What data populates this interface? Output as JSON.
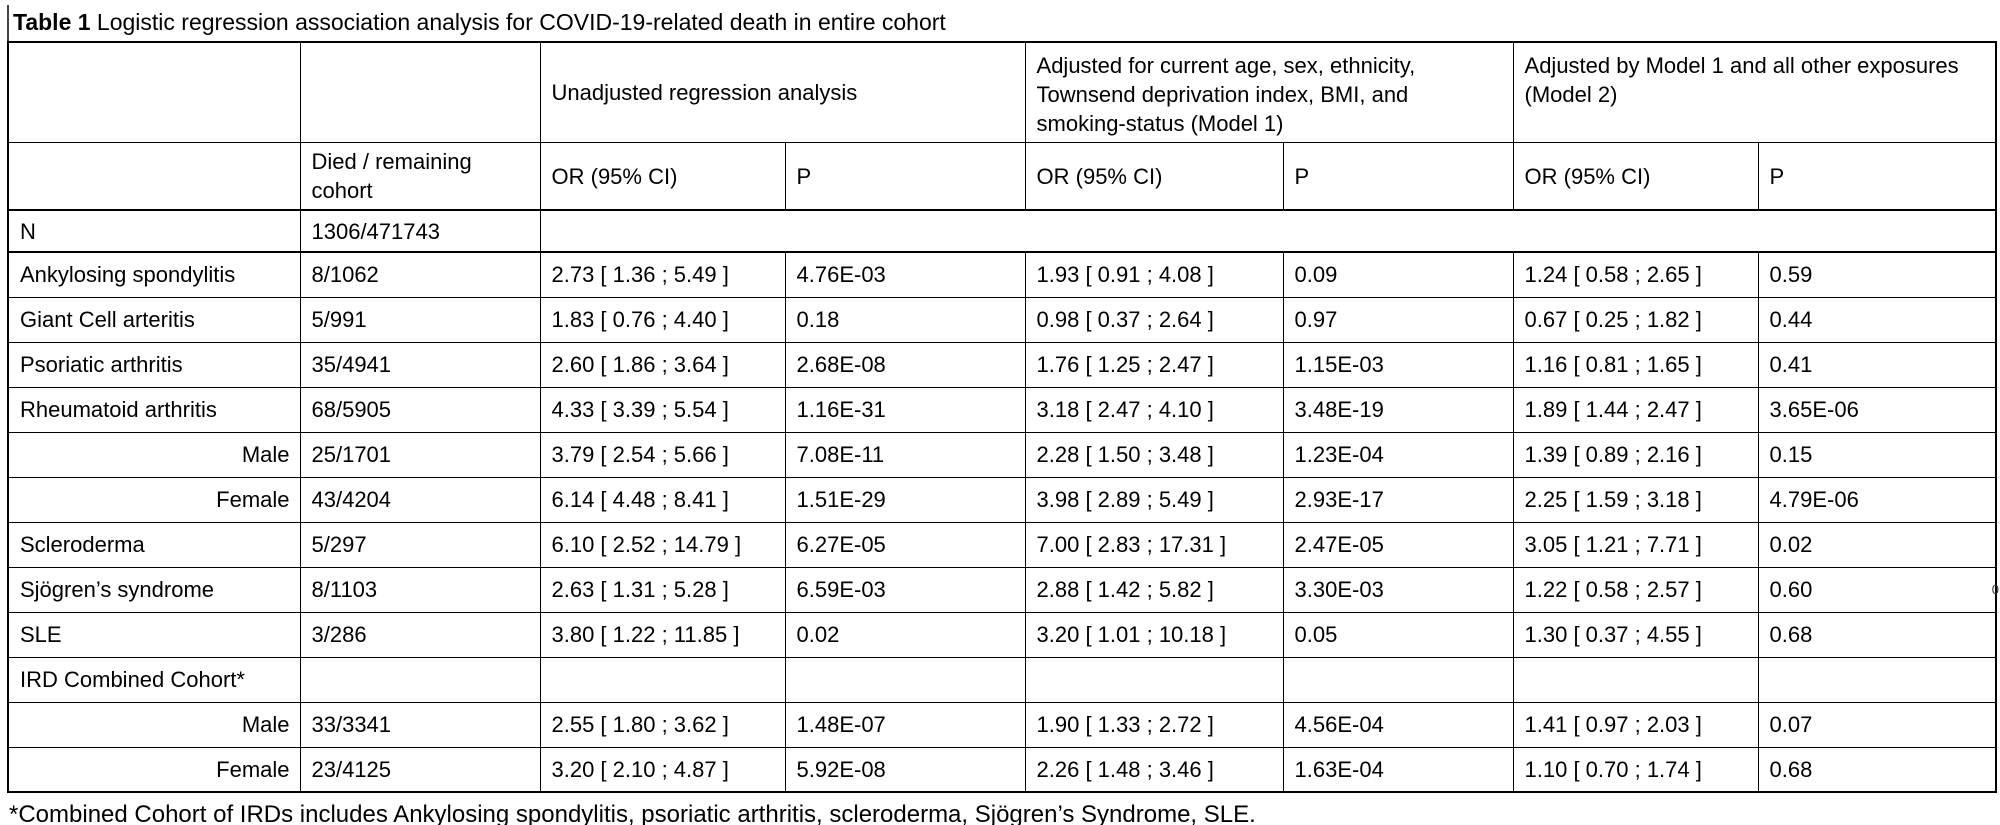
{
  "title": {
    "label_bold": "Table 1",
    "label_rest": " Logistic regression association analysis for COVID-19-related death in entire cohort"
  },
  "table": {
    "group_headers": {
      "unadjusted": "Unadjusted regression analysis",
      "model1": "Adjusted for current age, sex, ethnicity, Townsend deprivation index, BMI, and smoking-status (Model 1)",
      "model2": "Adjusted by Model 1 and all other exposures (Model 2)"
    },
    "column_headers": {
      "died_remaining": "Died / remaining cohort",
      "or_unadjusted": "OR (95% CI)",
      "p_unadjusted": "P",
      "or_model1": "OR (95% CI)",
      "p_model1": "P",
      "or_model2": "OR (95% CI)",
      "p_model2": "P"
    },
    "n_row": {
      "label": "N",
      "value": "1306/471743"
    },
    "rows": [
      {
        "label": "Ankylosing spondylitis",
        "align": "left",
        "cells": [
          "8/1062",
          "2.73 [ 1.36 ; 5.49 ]",
          "4.76E-03",
          "1.93 [ 0.91 ; 4.08 ]",
          "0.09",
          "1.24 [ 0.58 ; 2.65 ]",
          "0.59"
        ]
      },
      {
        "label": "Giant Cell arteritis",
        "align": "left",
        "cells": [
          "5/991",
          "1.83 [ 0.76 ; 4.40 ]",
          "0.18",
          "0.98 [ 0.37 ; 2.64 ]",
          "0.97",
          "0.67 [ 0.25 ; 1.82 ]",
          "0.44"
        ]
      },
      {
        "label": "Psoriatic arthritis",
        "align": "left",
        "cells": [
          "35/4941",
          "2.60 [ 1.86 ; 3.64 ]",
          "2.68E-08",
          "1.76 [ 1.25 ; 2.47 ]",
          "1.15E-03",
          "1.16 [ 0.81 ; 1.65 ]",
          "0.41"
        ]
      },
      {
        "label": "Rheumatoid arthritis",
        "align": "left",
        "cells": [
          "68/5905",
          "4.33 [ 3.39 ; 5.54 ]",
          "1.16E-31",
          "3.18 [ 2.47 ; 4.10 ]",
          "3.48E-19",
          "1.89 [ 1.44 ; 2.47 ]",
          "3.65E-06"
        ]
      },
      {
        "label": "Male",
        "align": "right",
        "cells": [
          "25/1701",
          "3.79 [ 2.54 ; 5.66 ]",
          "7.08E-11",
          "2.28 [ 1.50 ; 3.48 ]",
          "1.23E-04",
          "1.39 [ 0.89 ; 2.16 ]",
          "0.15"
        ]
      },
      {
        "label": "Female",
        "align": "right",
        "cells": [
          "43/4204",
          "6.14 [ 4.48 ; 8.41 ]",
          "1.51E-29",
          "3.98 [ 2.89 ; 5.49 ]",
          "2.93E-17",
          "2.25 [ 1.59 ; 3.18 ]",
          "4.79E-06"
        ]
      },
      {
        "label": "Scleroderma",
        "align": "left",
        "cells": [
          "5/297",
          "6.10 [ 2.52 ; 14.79 ]",
          "6.27E-05",
          "7.00 [ 2.83 ; 17.31 ]",
          "2.47E-05",
          "3.05 [ 1.21 ; 7.71 ]",
          "0.02"
        ]
      },
      {
        "label": "Sjögren’s syndrome",
        "align": "left",
        "cells": [
          "8/1103",
          "2.63 [ 1.31 ; 5.28 ]",
          "6.59E-03",
          "2.88 [ 1.42 ; 5.82 ]",
          "3.30E-03",
          "1.22 [ 0.58 ; 2.57 ]",
          "0.60"
        ]
      },
      {
        "label": "SLE",
        "align": "left",
        "cells": [
          "3/286",
          "3.80 [ 1.22 ; 11.85 ]",
          "0.02",
          "3.20 [ 1.01 ; 10.18 ]",
          "0.05",
          "1.30 [ 0.37 ; 4.55 ]",
          "0.68"
        ]
      },
      {
        "label": "IRD Combined Cohort*",
        "align": "left",
        "cells": [
          "",
          "",
          "",
          "",
          "",
          "",
          ""
        ]
      },
      {
        "label": "Male",
        "align": "right",
        "cells": [
          "33/3341",
          "2.55 [ 1.80 ; 3.62 ]",
          "1.48E-07",
          "1.90 [ 1.33 ; 2.72 ]",
          "4.56E-04",
          "1.41 [ 0.97 ; 2.03 ]",
          "0.07"
        ]
      },
      {
        "label": "Female",
        "align": "right",
        "cells": [
          "23/4125",
          "3.20 [ 2.10 ; 4.87 ]",
          "5.92E-08",
          "2.26 [ 1.48 ; 3.46 ]",
          "1.63E-04",
          "1.10  [ 0.70 ; 1.74 ]",
          "0.68"
        ]
      }
    ]
  },
  "footnote": "*Combined Cohort of IRDs includes Ankylosing spondylitis, psoriatic arthritis, scleroderma, Sjögren’s Syndrome, SLE.",
  "stray_character": "0"
}
